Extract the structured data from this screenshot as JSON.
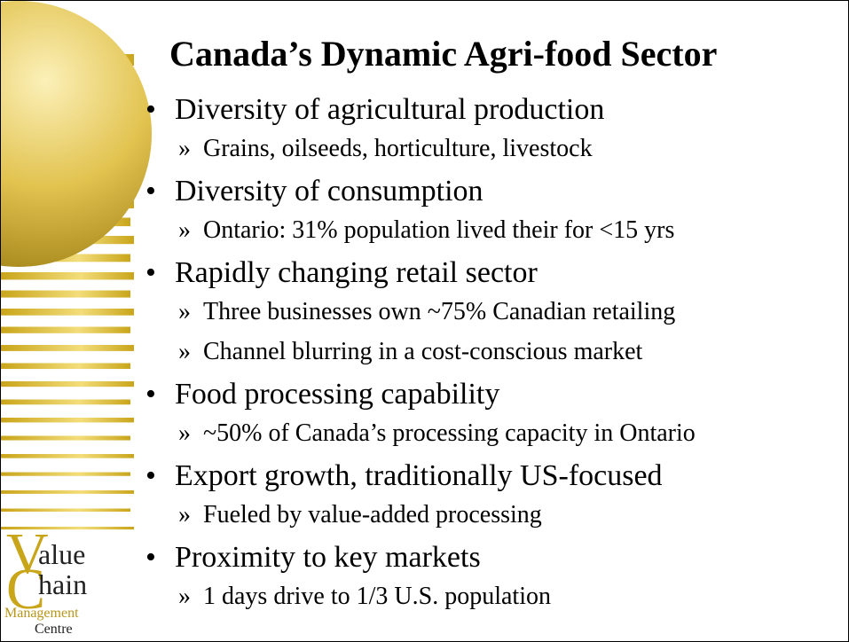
{
  "header": {
    "title": "Canada’s Dynamic Agri-food Sector"
  },
  "bullets": [
    {
      "text": "Diversity of agricultural production",
      "subs": [
        "Grains, oilseeds, horticulture, livestock"
      ]
    },
    {
      "text": "Diversity of consumption",
      "subs": [
        "Ontario: 31% population lived their for <15 yrs"
      ]
    },
    {
      "text": "Rapidly changing retail sector",
      "subs": [
        "Three businesses own ~75% Canadian retailing",
        "Channel blurring in a cost-conscious market"
      ]
    },
    {
      "text": "Food processing capability",
      "subs": [
        "~50% of Canada’s processing capacity in Ontario"
      ]
    },
    {
      "text": "Export growth, traditionally US-focused",
      "subs": [
        "Fueled by value-added processing"
      ]
    },
    {
      "text": "Proximity to key markets",
      "subs": [
        "1 days drive to 1/3 U.S. population"
      ]
    }
  ],
  "logo": {
    "initial1": "V",
    "rest1": "alue",
    "initial2": "C",
    "rest2": "hain",
    "line3": "Management",
    "line4": "Centre"
  }
}
